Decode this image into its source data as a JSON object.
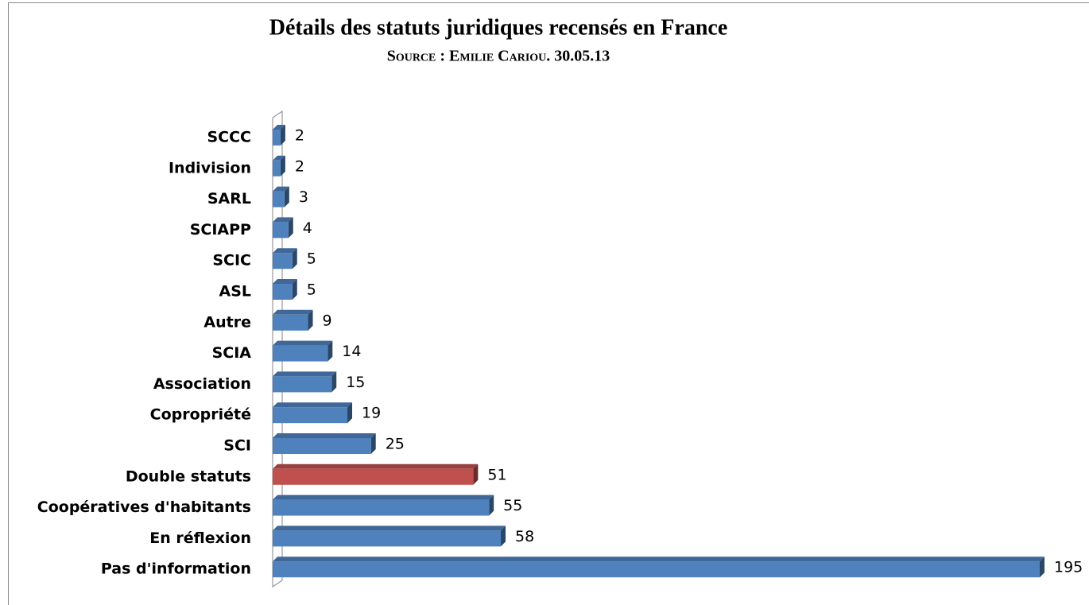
{
  "chart_data": {
    "type": "bar",
    "orientation": "horizontal",
    "title": "Détails des statuts juridiques recensés en France",
    "subtitle": "Source : Emilie Cariou. 30.05.13",
    "categories": [
      "SCCC",
      "Indivision",
      "SARL",
      "SCIAPP",
      "SCIC",
      "ASL",
      "Autre",
      "SCIA",
      "Association",
      "Copropriété",
      "SCI",
      "Double statuts",
      "Coopératives d'habitants",
      "En réflexion",
      "Pas d'information"
    ],
    "values": [
      2,
      2,
      3,
      4,
      5,
      5,
      9,
      14,
      15,
      19,
      25,
      51,
      55,
      58,
      195
    ],
    "colors": [
      "#4f81bd",
      "#4f81bd",
      "#4f81bd",
      "#4f81bd",
      "#4f81bd",
      "#4f81bd",
      "#4f81bd",
      "#4f81bd",
      "#4f81bd",
      "#4f81bd",
      "#4f81bd",
      "#c0504d",
      "#4f81bd",
      "#4f81bd",
      "#4f81bd"
    ],
    "grid": false,
    "legend": false
  }
}
